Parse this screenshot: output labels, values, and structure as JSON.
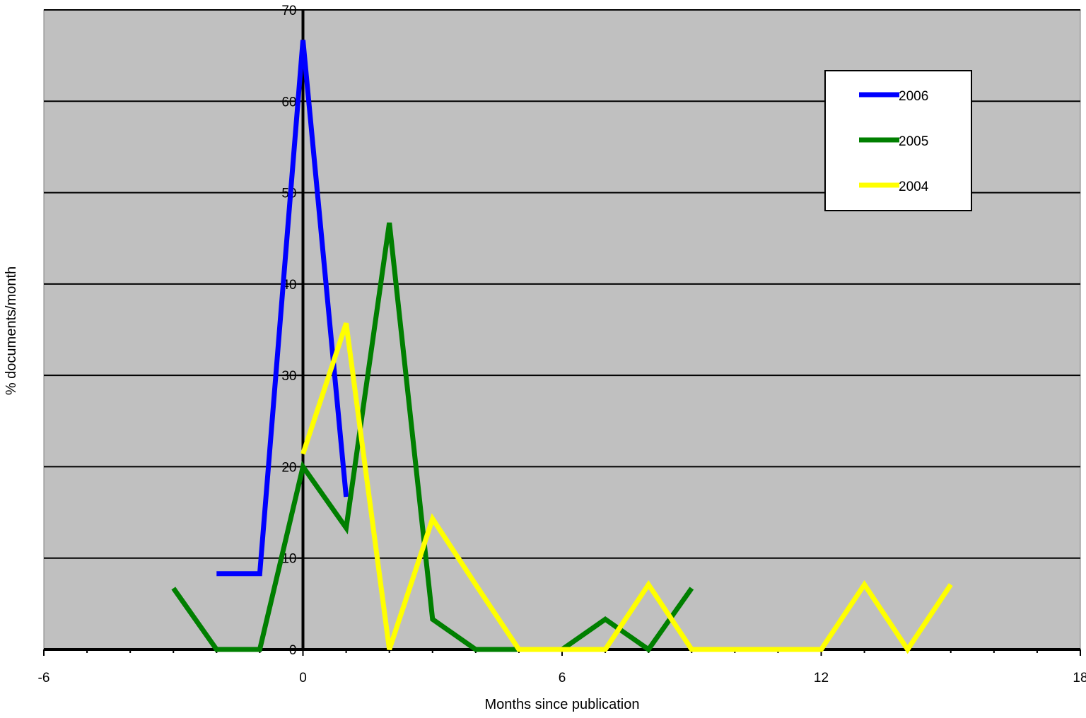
{
  "chart_data": {
    "type": "line",
    "title": "",
    "xlabel": "Months since publication",
    "ylabel": "% documents/month",
    "xlim": [
      -6,
      18
    ],
    "ylim": [
      0,
      70
    ],
    "x_ticks": [
      -6,
      0,
      6,
      12,
      18
    ],
    "x_tick_labels": [
      "-6",
      "0",
      "6",
      "12",
      "18"
    ],
    "y_ticks": [
      0,
      10,
      20,
      30,
      40,
      50,
      60,
      70
    ],
    "y_tick_labels": [
      "0",
      "10",
      "20",
      "30",
      "40",
      "50",
      "60",
      "70"
    ],
    "grid": "horizontal",
    "plot_background": "#c0c0c0",
    "legend_position": "top-right",
    "series": [
      {
        "name": "2006",
        "color": "#0000ff",
        "points": [
          [
            -2,
            8.3
          ],
          [
            -1,
            8.3
          ],
          [
            0,
            66.7
          ],
          [
            1,
            16.7
          ]
        ]
      },
      {
        "name": "2005",
        "color": "#007f00",
        "points": [
          [
            -3,
            6.7
          ],
          [
            -2,
            0
          ],
          [
            -1,
            0
          ],
          [
            0,
            20
          ],
          [
            1,
            13.3
          ],
          [
            2,
            46.7
          ],
          [
            3,
            3.3
          ],
          [
            4,
            0
          ],
          [
            5,
            0
          ],
          [
            6,
            0
          ],
          [
            7,
            3.3
          ],
          [
            8,
            0
          ],
          [
            9,
            6.7
          ]
        ]
      },
      {
        "name": "2004",
        "color": "#ffff00",
        "points": [
          [
            0,
            21.4
          ],
          [
            1,
            35.7
          ],
          [
            2,
            0
          ],
          [
            3,
            14.3
          ],
          [
            4,
            7.1
          ],
          [
            5,
            0
          ],
          [
            6,
            0
          ],
          [
            7,
            0
          ],
          [
            8,
            7.1
          ],
          [
            9,
            0
          ],
          [
            10,
            0
          ],
          [
            11,
            0
          ],
          [
            12,
            0
          ],
          [
            13,
            7.1
          ],
          [
            14,
            0
          ],
          [
            15,
            7.1
          ]
        ]
      }
    ]
  }
}
